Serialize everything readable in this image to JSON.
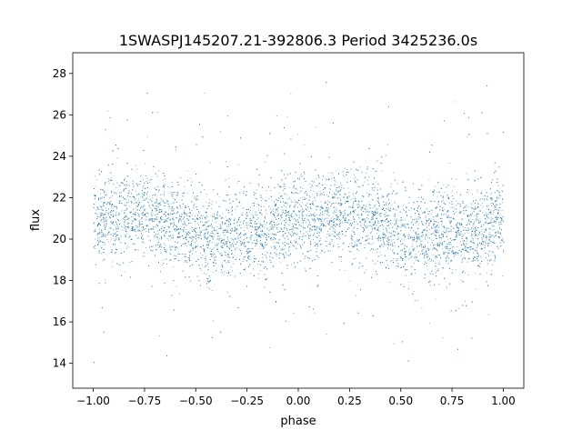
{
  "chart_data": {
    "type": "scatter",
    "title": "1SWASPJ145207.21-392806.3 Period 3425236.0s",
    "xlabel": "phase",
    "ylabel": "flux",
    "xlim": [
      -1.1,
      1.1
    ],
    "ylim": [
      12.8,
      29.0
    ],
    "x_ticks": [
      -1.0,
      -0.75,
      -0.5,
      -0.25,
      0.0,
      0.25,
      0.5,
      0.75,
      1.0
    ],
    "x_tick_labels": [
      "−1.00",
      "−0.75",
      "−0.50",
      "−0.25",
      "0.00",
      "0.25",
      "0.50",
      "0.75",
      "1.00"
    ],
    "y_ticks": [
      14,
      16,
      18,
      20,
      22,
      24,
      26,
      28
    ],
    "y_tick_labels": [
      "14",
      "16",
      "18",
      "20",
      "22",
      "24",
      "26",
      "28"
    ],
    "grid": false,
    "legend": "none",
    "marker_color": "#1f77b4",
    "series": [
      {
        "phase_profile": [
          {
            "x": -1.0,
            "y": 21.2
          },
          {
            "x": -0.9,
            "y": 21.0
          },
          {
            "x": -0.75,
            "y": 21.3
          },
          {
            "x": -0.6,
            "y": 20.8
          },
          {
            "x": -0.5,
            "y": 20.1
          },
          {
            "x": -0.4,
            "y": 20.0
          },
          {
            "x": -0.3,
            "y": 20.4
          },
          {
            "x": -0.2,
            "y": 20.3
          },
          {
            "x": -0.1,
            "y": 20.6
          },
          {
            "x": 0.0,
            "y": 21.2
          },
          {
            "x": 0.1,
            "y": 21.0
          },
          {
            "x": 0.25,
            "y": 21.3
          },
          {
            "x": 0.4,
            "y": 20.8
          },
          {
            "x": 0.5,
            "y": 20.1
          },
          {
            "x": 0.6,
            "y": 20.0
          },
          {
            "x": 0.7,
            "y": 20.4
          },
          {
            "x": 0.8,
            "y": 20.3
          },
          {
            "x": 0.9,
            "y": 20.6
          },
          {
            "x": 1.0,
            "y": 21.2
          }
        ]
      }
    ]
  }
}
